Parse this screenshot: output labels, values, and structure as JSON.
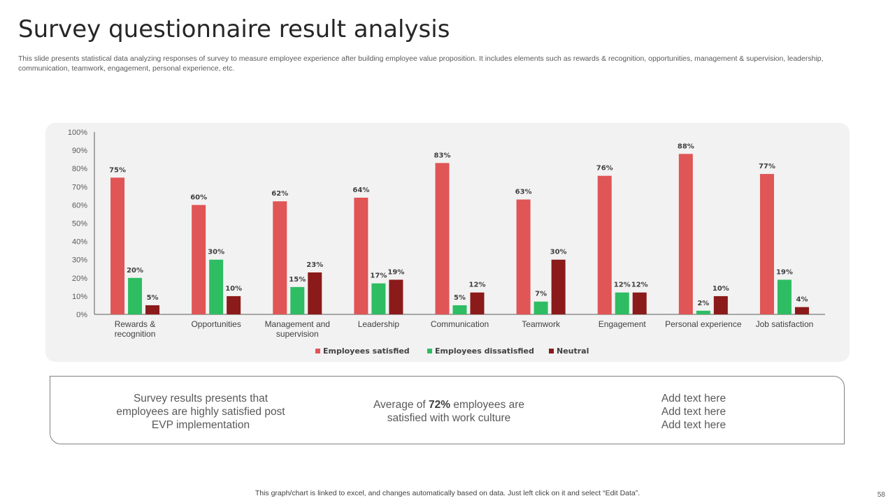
{
  "page": {
    "title": "Survey questionnaire result analysis",
    "subtitle": "This slide presents statistical data analyzing responses of survey to  measure employee experience after building employee value proposition. It includes elements such as rewards & recognition, opportunities, management & supervision, leadership, communication, teamwork, engagement, personal experience, etc.",
    "footer_note": "This graph/chart is linked to excel,  and changes automatically based on data. Just left click on it and select “Edit Data”.",
    "page_number": "58"
  },
  "summary": {
    "item1": "Survey results presents that employees are highly satisfied post EVP implementation",
    "item2_prefix": "Average of ",
    "item2_highlight": "72%",
    "item2_suffix": " employees are satisfied with work culture",
    "item3_lines": [
      "Add text here",
      "Add text here",
      "Add text here"
    ]
  },
  "chart_data": {
    "type": "bar",
    "title": "",
    "xlabel": "",
    "ylabel": "",
    "ylim": [
      0,
      100
    ],
    "y_ticks": [
      "0%",
      "10%",
      "20%",
      "30%",
      "40%",
      "50%",
      "60%",
      "70%",
      "80%",
      "90%",
      "100%"
    ],
    "grid": false,
    "legend_position": "bottom",
    "categories": [
      [
        "Rewards &",
        "recognition"
      ],
      [
        "Opportunities"
      ],
      [
        "Management and",
        "supervision"
      ],
      [
        "Leadership"
      ],
      [
        "Communication"
      ],
      [
        "Teamwork"
      ],
      [
        "Engagement"
      ],
      [
        "Personal experience"
      ],
      [
        "Job satisfaction"
      ]
    ],
    "series": [
      {
        "name": "Employees satisfied",
        "color": "#e05555",
        "values": [
          75,
          60,
          62,
          64,
          83,
          63,
          76,
          88,
          77
        ]
      },
      {
        "name": "Employees dissatisfied",
        "color": "#2ebd62",
        "values": [
          20,
          30,
          15,
          17,
          5,
          7,
          12,
          2,
          19
        ]
      },
      {
        "name": "Neutral",
        "color": "#8b1a1a",
        "values": [
          5,
          10,
          23,
          19,
          12,
          30,
          12,
          10,
          4
        ]
      }
    ],
    "value_suffix": "%"
  }
}
